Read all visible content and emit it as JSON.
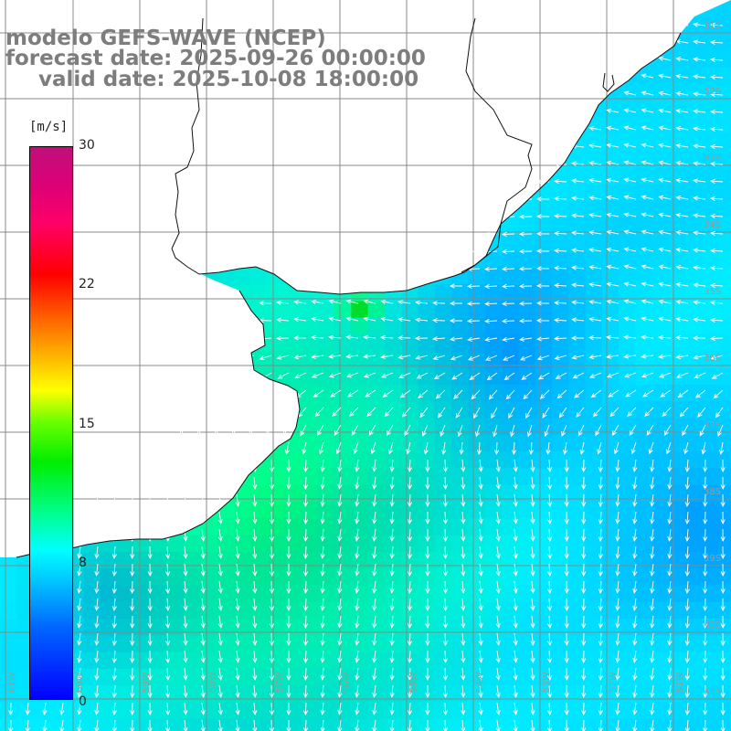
{
  "title": {
    "line1": "modelo GEFS-WAVE (NCEP)",
    "line2": "forecast date: 2025-09-26 00:00:00",
    "line3": "valid date: 2025-10-08 18:00:00"
  },
  "colorbar": {
    "unit": "[m/s]",
    "ticks": [
      "30",
      "22",
      "15",
      "8",
      "0"
    ],
    "min": 0,
    "max": 30,
    "colors": [
      "#0000ff",
      "#00ccff",
      "#00ffff",
      "#00ee00",
      "#ffff00",
      "#ff0000",
      "#c0107a"
    ]
  },
  "map": {
    "lat_labels": [
      "31S",
      "32S",
      "33S",
      "34S",
      "35S",
      "36S",
      "37S",
      "38S",
      "39S",
      "40S",
      "41S"
    ],
    "lon_labels": [
      "61W",
      "60W",
      "59W",
      "58W",
      "57W",
      "56W",
      "55W",
      "54W",
      "53W",
      "52W",
      "51W"
    ],
    "land_color": "#ffffff",
    "grid_color": "#888888",
    "arrow_color": "#ffffff",
    "field": "wind speed and direction",
    "dominant_direction_north": "from east (westward arrows)",
    "dominant_direction_south": "from north (southward arrows)"
  }
}
